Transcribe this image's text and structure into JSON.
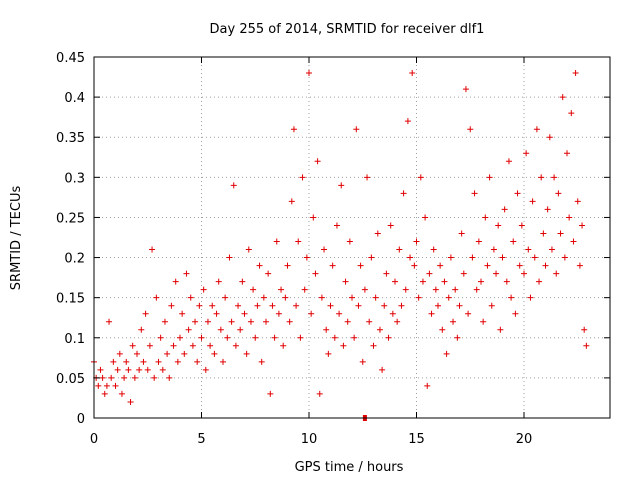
{
  "chart_data": {
    "type": "scatter",
    "title": "Day 255 of 2014, SRMTID for receiver dlf1",
    "xlabel": "GPS time / hours",
    "ylabel": "SRMTID / TECUs",
    "xlim": [
      0,
      24
    ],
    "ylim": [
      0,
      0.45
    ],
    "xticks": [
      0,
      5,
      10,
      15,
      20
    ],
    "xtick_labels": [
      "0",
      "5",
      "10",
      "15",
      "20"
    ],
    "yticks": [
      0,
      0.05,
      0.1,
      0.15,
      0.2,
      0.25,
      0.3,
      0.35,
      0.4,
      0.45
    ],
    "ytick_labels": [
      "0",
      "0.05",
      "0.1",
      "0.15",
      "0.2",
      "0.25",
      "0.3",
      "0.35",
      "0.4",
      "0.45"
    ],
    "grid": true,
    "marker": "+",
    "series": [
      {
        "color": "#e00000",
        "points": [
          [
            0.0,
            0.07
          ],
          [
            0.1,
            0.05
          ],
          [
            0.2,
            0.04
          ],
          [
            0.3,
            0.06
          ],
          [
            0.4,
            0.05
          ],
          [
            0.5,
            0.03
          ],
          [
            0.6,
            0.04
          ],
          [
            0.7,
            0.12
          ],
          [
            0.8,
            0.05
          ],
          [
            0.9,
            0.07
          ],
          [
            1.0,
            0.04
          ],
          [
            1.1,
            0.06
          ],
          [
            1.2,
            0.08
          ],
          [
            1.3,
            0.03
          ],
          [
            1.4,
            0.05
          ],
          [
            1.5,
            0.07
          ],
          [
            1.6,
            0.06
          ],
          [
            1.7,
            0.02
          ],
          [
            1.8,
            0.09
          ],
          [
            1.9,
            0.05
          ],
          [
            2.0,
            0.08
          ],
          [
            2.1,
            0.06
          ],
          [
            2.2,
            0.11
          ],
          [
            2.3,
            0.07
          ],
          [
            2.4,
            0.13
          ],
          [
            2.5,
            0.06
          ],
          [
            2.6,
            0.09
          ],
          [
            2.7,
            0.21
          ],
          [
            2.8,
            0.05
          ],
          [
            2.9,
            0.15
          ],
          [
            3.0,
            0.07
          ],
          [
            3.1,
            0.1
          ],
          [
            3.2,
            0.06
          ],
          [
            3.3,
            0.12
          ],
          [
            3.4,
            0.08
          ],
          [
            3.5,
            0.05
          ],
          [
            3.6,
            0.14
          ],
          [
            3.7,
            0.09
          ],
          [
            3.8,
            0.17
          ],
          [
            3.9,
            0.07
          ],
          [
            4.0,
            0.1
          ],
          [
            4.1,
            0.13
          ],
          [
            4.2,
            0.08
          ],
          [
            4.3,
            0.18
          ],
          [
            4.4,
            0.11
          ],
          [
            4.5,
            0.15
          ],
          [
            4.6,
            0.09
          ],
          [
            4.7,
            0.12
          ],
          [
            4.8,
            0.07
          ],
          [
            4.9,
            0.14
          ],
          [
            5.0,
            0.1
          ],
          [
            5.1,
            0.16
          ],
          [
            5.2,
            0.06
          ],
          [
            5.3,
            0.12
          ],
          [
            5.4,
            0.09
          ],
          [
            5.5,
            0.14
          ],
          [
            5.6,
            0.08
          ],
          [
            5.7,
            0.13
          ],
          [
            5.8,
            0.17
          ],
          [
            5.9,
            0.11
          ],
          [
            6.0,
            0.07
          ],
          [
            6.1,
            0.15
          ],
          [
            6.2,
            0.1
          ],
          [
            6.3,
            0.2
          ],
          [
            6.4,
            0.12
          ],
          [
            6.5,
            0.29
          ],
          [
            6.6,
            0.09
          ],
          [
            6.7,
            0.14
          ],
          [
            6.8,
            0.11
          ],
          [
            6.9,
            0.17
          ],
          [
            7.0,
            0.13
          ],
          [
            7.1,
            0.08
          ],
          [
            7.2,
            0.21
          ],
          [
            7.3,
            0.12
          ],
          [
            7.4,
            0.16
          ],
          [
            7.5,
            0.1
          ],
          [
            7.6,
            0.14
          ],
          [
            7.7,
            0.19
          ],
          [
            7.8,
            0.07
          ],
          [
            7.9,
            0.15
          ],
          [
            8.0,
            0.12
          ],
          [
            8.1,
            0.18
          ],
          [
            8.2,
            0.03
          ],
          [
            8.3,
            0.14
          ],
          [
            8.4,
            0.1
          ],
          [
            8.5,
            0.22
          ],
          [
            8.6,
            0.13
          ],
          [
            8.7,
            0.16
          ],
          [
            8.8,
            0.09
          ],
          [
            8.9,
            0.15
          ],
          [
            9.0,
            0.19
          ],
          [
            9.1,
            0.12
          ],
          [
            9.2,
            0.27
          ],
          [
            9.3,
            0.36
          ],
          [
            9.4,
            0.14
          ],
          [
            9.5,
            0.22
          ],
          [
            9.6,
            0.1
          ],
          [
            9.7,
            0.3
          ],
          [
            9.8,
            0.16
          ],
          [
            9.9,
            0.2
          ],
          [
            10.0,
            0.43
          ],
          [
            10.1,
            0.13
          ],
          [
            10.2,
            0.25
          ],
          [
            10.3,
            0.18
          ],
          [
            10.4,
            0.32
          ],
          [
            10.5,
            0.03
          ],
          [
            10.6,
            0.15
          ],
          [
            10.7,
            0.21
          ],
          [
            10.8,
            0.11
          ],
          [
            10.9,
            0.08
          ],
          [
            11.0,
            0.14
          ],
          [
            11.1,
            0.19
          ],
          [
            11.2,
            0.1
          ],
          [
            11.3,
            0.24
          ],
          [
            11.4,
            0.13
          ],
          [
            11.5,
            0.29
          ],
          [
            11.6,
            0.09
          ],
          [
            11.7,
            0.17
          ],
          [
            11.8,
            0.12
          ],
          [
            11.9,
            0.22
          ],
          [
            12.0,
            0.15
          ],
          [
            12.1,
            0.1
          ],
          [
            12.2,
            0.36
          ],
          [
            12.3,
            0.14
          ],
          [
            12.4,
            0.19
          ],
          [
            12.5,
            0.07
          ],
          [
            12.6,
            0.16
          ],
          [
            12.7,
            0.3
          ],
          [
            12.8,
            0.12
          ],
          [
            12.9,
            0.2
          ],
          [
            13.0,
            0.09
          ],
          [
            13.1,
            0.15
          ],
          [
            13.2,
            0.23
          ],
          [
            13.3,
            0.11
          ],
          [
            13.4,
            0.06
          ],
          [
            13.5,
            0.14
          ],
          [
            13.6,
            0.18
          ],
          [
            13.7,
            0.1
          ],
          [
            13.8,
            0.24
          ],
          [
            13.9,
            0.13
          ],
          [
            14.0,
            0.17
          ],
          [
            14.1,
            0.12
          ],
          [
            14.2,
            0.21
          ],
          [
            14.3,
            0.14
          ],
          [
            14.4,
            0.28
          ],
          [
            14.5,
            0.16
          ],
          [
            14.6,
            0.37
          ],
          [
            14.7,
            0.2
          ],
          [
            14.8,
            0.43
          ],
          [
            14.9,
            0.19
          ],
          [
            15.0,
            0.22
          ],
          [
            15.1,
            0.15
          ],
          [
            15.2,
            0.3
          ],
          [
            15.3,
            0.17
          ],
          [
            15.4,
            0.25
          ],
          [
            15.5,
            0.04
          ],
          [
            15.6,
            0.18
          ],
          [
            15.7,
            0.13
          ],
          [
            15.8,
            0.21
          ],
          [
            15.9,
            0.16
          ],
          [
            16.0,
            0.14
          ],
          [
            16.1,
            0.19
          ],
          [
            16.2,
            0.11
          ],
          [
            16.3,
            0.17
          ],
          [
            16.4,
            0.08
          ],
          [
            16.5,
            0.15
          ],
          [
            16.6,
            0.2
          ],
          [
            16.7,
            0.12
          ],
          [
            16.8,
            0.16
          ],
          [
            16.9,
            0.1
          ],
          [
            17.0,
            0.14
          ],
          [
            17.1,
            0.23
          ],
          [
            17.2,
            0.18
          ],
          [
            17.3,
            0.41
          ],
          [
            17.4,
            0.13
          ],
          [
            17.5,
            0.36
          ],
          [
            17.6,
            0.2
          ],
          [
            17.7,
            0.28
          ],
          [
            17.8,
            0.16
          ],
          [
            17.9,
            0.22
          ],
          [
            18.0,
            0.17
          ],
          [
            18.1,
            0.12
          ],
          [
            18.2,
            0.25
          ],
          [
            18.3,
            0.19
          ],
          [
            18.4,
            0.3
          ],
          [
            18.5,
            0.14
          ],
          [
            18.6,
            0.21
          ],
          [
            18.7,
            0.18
          ],
          [
            18.8,
            0.24
          ],
          [
            18.9,
            0.11
          ],
          [
            19.0,
            0.2
          ],
          [
            19.1,
            0.26
          ],
          [
            19.2,
            0.17
          ],
          [
            19.3,
            0.32
          ],
          [
            19.4,
            0.15
          ],
          [
            19.5,
            0.22
          ],
          [
            19.6,
            0.13
          ],
          [
            19.7,
            0.28
          ],
          [
            19.8,
            0.19
          ],
          [
            19.9,
            0.24
          ],
          [
            20.0,
            0.18
          ],
          [
            20.1,
            0.33
          ],
          [
            20.2,
            0.21
          ],
          [
            20.3,
            0.15
          ],
          [
            20.4,
            0.27
          ],
          [
            20.5,
            0.2
          ],
          [
            20.6,
            0.36
          ],
          [
            20.7,
            0.17
          ],
          [
            20.8,
            0.3
          ],
          [
            20.9,
            0.23
          ],
          [
            21.0,
            0.19
          ],
          [
            21.1,
            0.26
          ],
          [
            21.2,
            0.35
          ],
          [
            21.3,
            0.21
          ],
          [
            21.4,
            0.3
          ],
          [
            21.5,
            0.18
          ],
          [
            21.6,
            0.28
          ],
          [
            21.7,
            0.23
          ],
          [
            21.8,
            0.4
          ],
          [
            21.9,
            0.2
          ],
          [
            22.0,
            0.33
          ],
          [
            22.1,
            0.25
          ],
          [
            22.2,
            0.38
          ],
          [
            22.3,
            0.22
          ],
          [
            22.4,
            0.43
          ],
          [
            22.5,
            0.27
          ],
          [
            22.6,
            0.19
          ],
          [
            22.7,
            0.24
          ],
          [
            22.8,
            0.11
          ],
          [
            22.9,
            0.09
          ]
        ]
      }
    ],
    "x_axis_marker": [
      12.6,
      0
    ]
  }
}
